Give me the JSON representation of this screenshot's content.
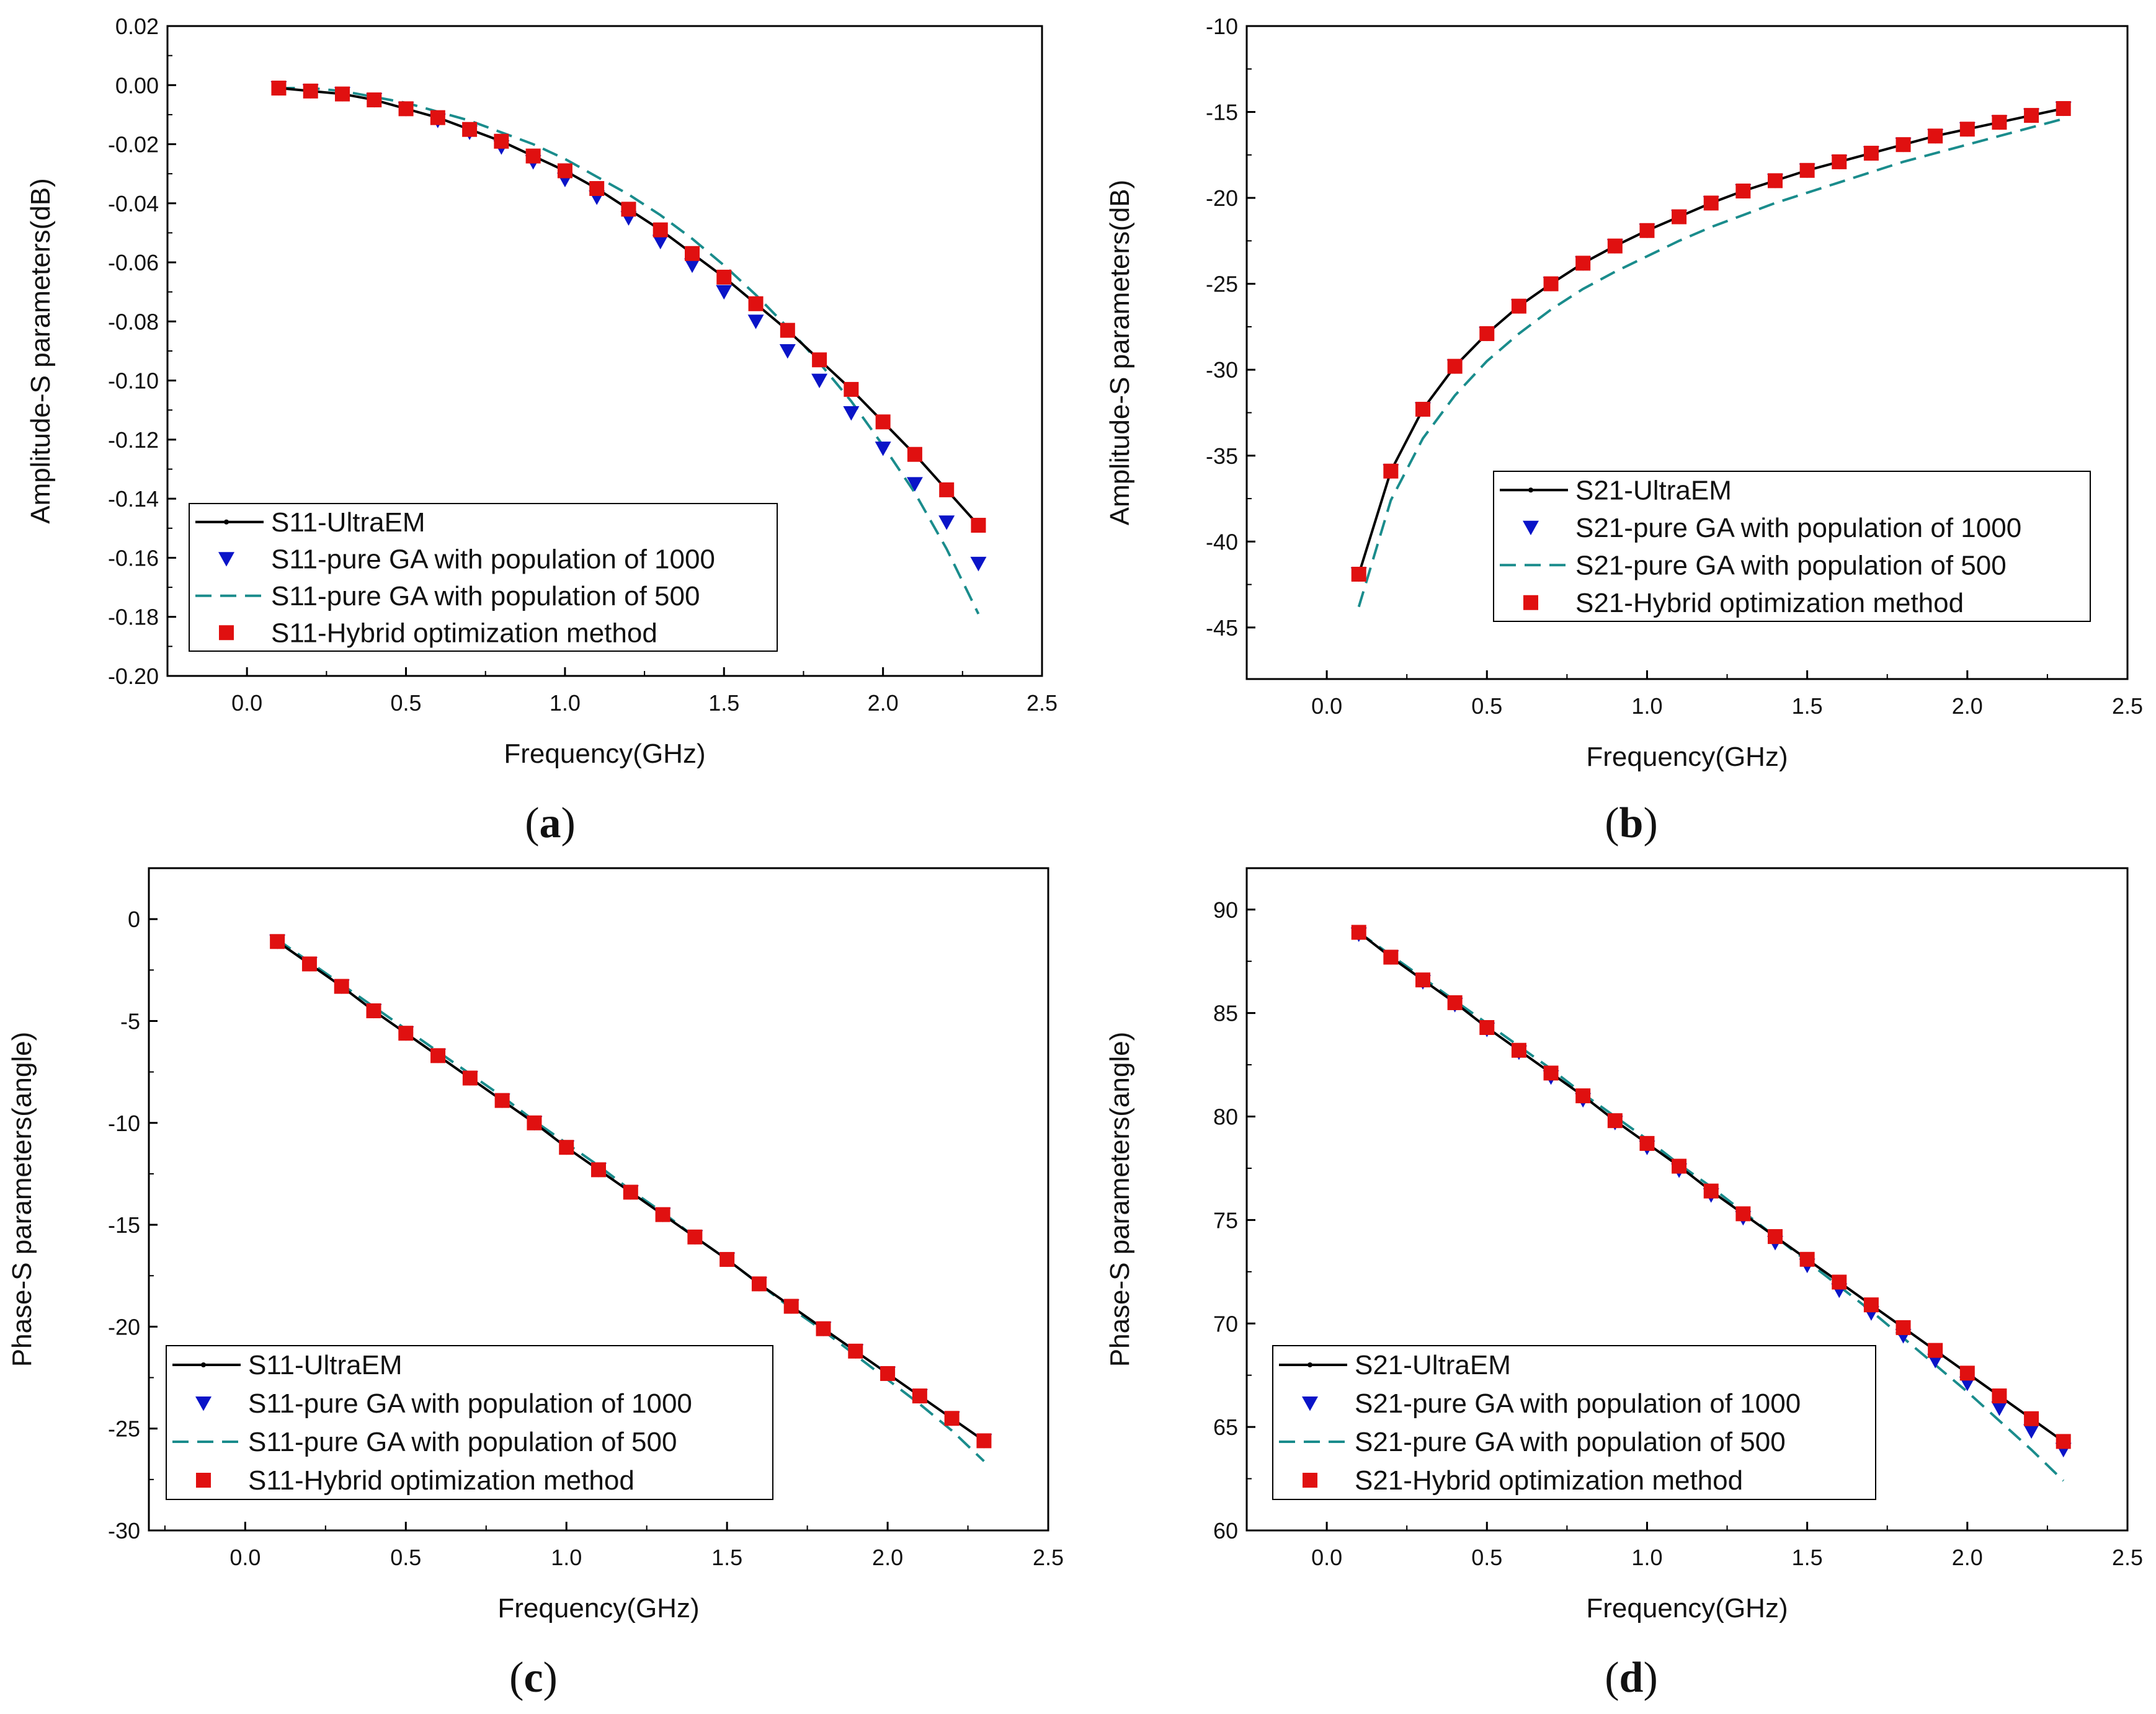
{
  "colors": {
    "ultraem": "#000000",
    "ga1000": "#0a14c8",
    "ga500": "#1a8c8c",
    "hybrid": "#e01010",
    "axis": "#000000"
  },
  "chart_data": [
    {
      "id": "a",
      "type": "line",
      "panel_label": "a",
      "xlabel": "Frequency(GHz)",
      "ylabel": "Amplitude-S parameters(dB)",
      "xlim": [
        -0.25,
        2.5
      ],
      "ylim": [
        -0.2,
        0.02
      ],
      "xticks": [
        0.0,
        0.5,
        1.0,
        1.5,
        2.0,
        2.5
      ],
      "xtick_labels": [
        "0.0",
        "0.5",
        "1.0",
        "1.5",
        "2.0",
        "2.5"
      ],
      "yticks": [
        0.02,
        0.0,
        -0.02,
        -0.04,
        -0.06,
        -0.08,
        -0.1,
        -0.12,
        -0.14,
        -0.16,
        -0.18,
        -0.2
      ],
      "ytick_labels": [
        "0.02",
        "0.00",
        "-0.02",
        "-0.04",
        "-0.06",
        "-0.08",
        "-0.10",
        "-0.12",
        "-0.14",
        "-0.16",
        "-0.18",
        "-0.20"
      ],
      "legend_position": "bottom-left",
      "x": [
        0.1,
        0.2,
        0.3,
        0.4,
        0.5,
        0.6,
        0.7,
        0.8,
        0.9,
        1.0,
        1.1,
        1.2,
        1.3,
        1.4,
        1.5,
        1.6,
        1.7,
        1.8,
        1.9,
        2.0,
        2.1,
        2.2,
        2.3
      ],
      "series": [
        {
          "name": "S11-UltraEM",
          "style": "line-dot",
          "values": [
            -0.001,
            -0.002,
            -0.003,
            -0.005,
            -0.008,
            -0.011,
            -0.015,
            -0.019,
            -0.024,
            -0.029,
            -0.035,
            -0.042,
            -0.049,
            -0.057,
            -0.065,
            -0.074,
            -0.083,
            -0.093,
            -0.103,
            -0.114,
            -0.125,
            -0.137,
            -0.149
          ]
        },
        {
          "name": "S11-pure GA with population of 1000",
          "style": "triangle",
          "values": [
            -0.001,
            -0.002,
            -0.003,
            -0.005,
            -0.008,
            -0.012,
            -0.016,
            -0.021,
            -0.026,
            -0.032,
            -0.038,
            -0.045,
            -0.053,
            -0.061,
            -0.07,
            -0.08,
            -0.09,
            -0.1,
            -0.111,
            -0.123,
            -0.135,
            -0.148,
            -0.162
          ]
        },
        {
          "name": "S11-pure GA with population of 500",
          "style": "dash",
          "values": [
            -0.001,
            -0.001,
            -0.002,
            -0.004,
            -0.006,
            -0.009,
            -0.012,
            -0.016,
            -0.02,
            -0.025,
            -0.031,
            -0.037,
            -0.044,
            -0.052,
            -0.061,
            -0.071,
            -0.082,
            -0.094,
            -0.107,
            -0.122,
            -0.138,
            -0.157,
            -0.179
          ]
        },
        {
          "name": "S11-Hybrid optimization method",
          "style": "square",
          "values": [
            -0.001,
            -0.002,
            -0.003,
            -0.005,
            -0.008,
            -0.011,
            -0.015,
            -0.019,
            -0.024,
            -0.029,
            -0.035,
            -0.042,
            -0.049,
            -0.057,
            -0.065,
            -0.074,
            -0.083,
            -0.093,
            -0.103,
            -0.114,
            -0.125,
            -0.137,
            -0.149
          ]
        }
      ]
    },
    {
      "id": "b",
      "type": "line",
      "panel_label": "b",
      "xlabel": "Frequency(GHz)",
      "ylabel": "Amplitude-S parameters(dB)",
      "xlim": [
        -0.25,
        2.5
      ],
      "ylim": [
        -48,
        -10
      ],
      "xticks": [
        0.0,
        0.5,
        1.0,
        1.5,
        2.0,
        2.5
      ],
      "xtick_labels": [
        "0.0",
        "0.5",
        "1.0",
        "1.5",
        "2.0",
        "2.5"
      ],
      "yticks": [
        -10,
        -15,
        -20,
        -25,
        -30,
        -35,
        -40,
        -45
      ],
      "ytick_labels": [
        "-10",
        "-15",
        "-20",
        "-25",
        "-30",
        "-35",
        "-40",
        "-45"
      ],
      "legend_position": "right-middle",
      "x": [
        0.1,
        0.2,
        0.3,
        0.4,
        0.5,
        0.6,
        0.7,
        0.8,
        0.9,
        1.0,
        1.1,
        1.2,
        1.3,
        1.4,
        1.5,
        1.6,
        1.7,
        1.8,
        1.9,
        2.0,
        2.1,
        2.2,
        2.3
      ],
      "series": [
        {
          "name": "S21-UltraEM",
          "style": "line-dot",
          "values": [
            -41.9,
            -35.9,
            -32.3,
            -29.8,
            -27.9,
            -26.3,
            -25.0,
            -23.8,
            -22.8,
            -21.9,
            -21.1,
            -20.3,
            -19.6,
            -19.0,
            -18.4,
            -17.9,
            -17.4,
            -16.9,
            -16.4,
            -16.0,
            -15.6,
            -15.2,
            -14.8
          ]
        },
        {
          "name": "S21-pure GA with population of 1000",
          "style": "triangle",
          "values": [
            -41.9,
            -35.9,
            -32.3,
            -29.8,
            -27.9,
            -26.3,
            -25.0,
            -23.8,
            -22.8,
            -21.9,
            -21.1,
            -20.3,
            -19.6,
            -19.0,
            -18.4,
            -17.9,
            -17.4,
            -16.9,
            -16.4,
            -16.0,
            -15.6,
            -15.2,
            -14.8
          ]
        },
        {
          "name": "S21-pure GA with population of 500",
          "style": "dash",
          "values": [
            -43.8,
            -37.6,
            -34.0,
            -31.5,
            -29.5,
            -27.9,
            -26.5,
            -25.3,
            -24.3,
            -23.4,
            -22.5,
            -21.7,
            -21.0,
            -20.3,
            -19.7,
            -19.1,
            -18.5,
            -17.9,
            -17.4,
            -16.9,
            -16.4,
            -15.9,
            -15.4
          ]
        },
        {
          "name": "S21-Hybrid optimization method",
          "style": "square",
          "values": [
            -41.9,
            -35.9,
            -32.3,
            -29.8,
            -27.9,
            -26.3,
            -25.0,
            -23.8,
            -22.8,
            -21.9,
            -21.1,
            -20.3,
            -19.6,
            -19.0,
            -18.4,
            -17.9,
            -17.4,
            -16.9,
            -16.4,
            -16.0,
            -15.6,
            -15.2,
            -14.8
          ]
        }
      ]
    },
    {
      "id": "c",
      "type": "line",
      "panel_label": "c",
      "xlabel": "Frequency(GHz)",
      "ylabel": "Phase-S parameters(angle)",
      "xlim": [
        -0.3,
        2.5
      ],
      "ylim": [
        -30,
        2.5
      ],
      "xticks": [
        0.0,
        0.5,
        1.0,
        1.5,
        2.0,
        2.5
      ],
      "xtick_labels": [
        "0.0",
        "0.5",
        "1.0",
        "1.5",
        "2.0",
        "2.5"
      ],
      "yticks": [
        0,
        -5,
        -10,
        -15,
        -20,
        -25,
        -30
      ],
      "ytick_labels": [
        "0",
        "-5",
        "-10",
        "-15",
        "-20",
        "-25",
        "-30"
      ],
      "legend_position": "bottom-left",
      "x": [
        0.1,
        0.2,
        0.3,
        0.4,
        0.5,
        0.6,
        0.7,
        0.8,
        0.9,
        1.0,
        1.1,
        1.2,
        1.3,
        1.4,
        1.5,
        1.6,
        1.7,
        1.8,
        1.9,
        2.0,
        2.1,
        2.2,
        2.3
      ],
      "series": [
        {
          "name": "S11-UltraEM",
          "style": "line-dot",
          "values": [
            -1.1,
            -2.2,
            -3.3,
            -4.5,
            -5.6,
            -6.7,
            -7.8,
            -8.9,
            -10.0,
            -11.2,
            -12.3,
            -13.4,
            -14.5,
            -15.6,
            -16.7,
            -17.9,
            -19.0,
            -20.1,
            -21.2,
            -22.3,
            -23.4,
            -24.5,
            -25.6
          ]
        },
        {
          "name": "S11-pure GA with population of 1000",
          "style": "triangle",
          "values": [
            -1.1,
            -2.2,
            -3.3,
            -4.5,
            -5.6,
            -6.7,
            -7.8,
            -8.9,
            -10.0,
            -11.2,
            -12.3,
            -13.4,
            -14.5,
            -15.6,
            -16.7,
            -17.9,
            -19.0,
            -20.1,
            -21.2,
            -22.3,
            -23.4,
            -24.5,
            -25.6
          ]
        },
        {
          "name": "S11-pure GA with population of 500",
          "style": "dash",
          "values": [
            -1.0,
            -2.1,
            -3.2,
            -4.3,
            -5.4,
            -6.5,
            -7.6,
            -8.7,
            -9.9,
            -11.0,
            -12.1,
            -13.3,
            -14.4,
            -15.6,
            -16.7,
            -17.9,
            -19.1,
            -20.2,
            -21.4,
            -22.6,
            -23.8,
            -25.1,
            -26.6
          ]
        },
        {
          "name": "S11-Hybrid optimization method",
          "style": "square",
          "values": [
            -1.1,
            -2.2,
            -3.3,
            -4.5,
            -5.6,
            -6.7,
            -7.8,
            -8.9,
            -10.0,
            -11.2,
            -12.3,
            -13.4,
            -14.5,
            -15.6,
            -16.7,
            -17.9,
            -19.0,
            -20.1,
            -21.2,
            -22.3,
            -23.4,
            -24.5,
            -25.6
          ]
        }
      ]
    },
    {
      "id": "d",
      "type": "line",
      "panel_label": "d",
      "xlabel": "Frequency(GHz)",
      "ylabel": "Phase-S parameters(angle)",
      "xlim": [
        -0.25,
        2.5
      ],
      "ylim": [
        60,
        92
      ],
      "xticks": [
        0.0,
        0.5,
        1.0,
        1.5,
        2.0,
        2.5
      ],
      "xtick_labels": [
        "0.0",
        "0.5",
        "1.0",
        "1.5",
        "2.0",
        "2.5"
      ],
      "yticks": [
        90,
        85,
        80,
        75,
        70,
        65,
        60
      ],
      "ytick_labels": [
        "90",
        "85",
        "80",
        "75",
        "70",
        "65",
        "60"
      ],
      "legend_position": "bottom-left",
      "x": [
        0.1,
        0.2,
        0.3,
        0.4,
        0.5,
        0.6,
        0.7,
        0.8,
        0.9,
        1.0,
        1.1,
        1.2,
        1.3,
        1.4,
        1.5,
        1.6,
        1.7,
        1.8,
        1.9,
        2.0,
        2.1,
        2.2,
        2.3
      ],
      "series": [
        {
          "name": "S21-UltraEM",
          "style": "line-dot",
          "values": [
            88.9,
            87.7,
            86.6,
            85.5,
            84.3,
            83.2,
            82.1,
            81.0,
            79.8,
            78.7,
            77.6,
            76.4,
            75.3,
            74.2,
            73.1,
            72.0,
            70.9,
            69.8,
            68.7,
            67.6,
            66.5,
            65.4,
            64.3
          ]
        },
        {
          "name": "S21-pure GA with population of 1000",
          "style": "triangle",
          "values": [
            88.8,
            87.7,
            86.5,
            85.4,
            84.2,
            83.1,
            81.9,
            80.8,
            79.7,
            78.5,
            77.4,
            76.2,
            75.1,
            73.9,
            72.8,
            71.6,
            70.5,
            69.4,
            68.2,
            67.1,
            65.9,
            64.8,
            63.9
          ]
        },
        {
          "name": "S21-pure GA with population of 500",
          "style": "dash",
          "values": [
            88.9,
            87.8,
            86.7,
            85.6,
            84.5,
            83.4,
            82.3,
            81.1,
            80.0,
            78.9,
            77.7,
            76.6,
            75.4,
            74.2,
            73.0,
            71.8,
            70.6,
            69.3,
            68.0,
            66.7,
            65.3,
            63.9,
            62.4
          ]
        },
        {
          "name": "S21-Hybrid optimization method",
          "style": "square",
          "values": [
            88.9,
            87.7,
            86.6,
            85.5,
            84.3,
            83.2,
            82.1,
            81.0,
            79.8,
            78.7,
            77.6,
            76.4,
            75.3,
            74.2,
            73.1,
            72.0,
            70.9,
            69.8,
            68.7,
            67.6,
            66.5,
            65.4,
            64.3
          ]
        }
      ]
    }
  ]
}
